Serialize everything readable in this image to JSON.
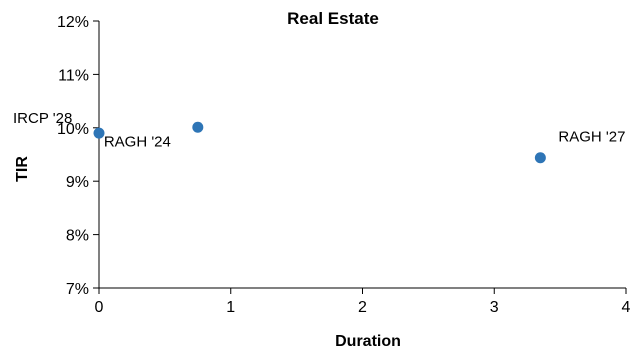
{
  "chart_data": {
    "type": "scatter",
    "title": "Real Estate",
    "xlabel": "Duration",
    "ylabel": "TIR",
    "xlim": [
      0,
      4
    ],
    "ylim": [
      0.07,
      0.12
    ],
    "x_ticks": [
      0,
      1,
      2,
      3,
      4
    ],
    "x_tick_labels": [
      "0",
      "1",
      "2",
      "3",
      "4"
    ],
    "y_ticks": [
      0.07,
      0.08,
      0.09,
      0.1,
      0.11,
      0.12
    ],
    "y_tick_labels": [
      "7%",
      "8%",
      "9%",
      "10%",
      "11%",
      "12%"
    ],
    "grid": false,
    "legend": "none",
    "marker_color": "#2e75b6",
    "series": [
      {
        "points": [
          {
            "x": 0.0,
            "y": 0.099,
            "label": "IRCP '28"
          },
          {
            "x": 0.75,
            "y": 0.1001,
            "label": "RAGH '24"
          },
          {
            "x": 3.35,
            "y": 0.0944,
            "label": "RAGH '27"
          }
        ]
      }
    ]
  }
}
